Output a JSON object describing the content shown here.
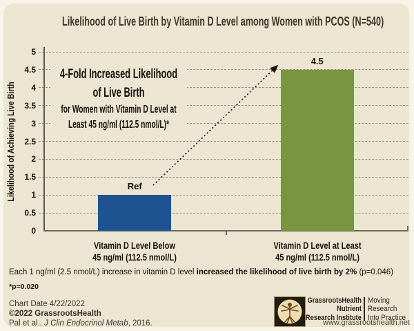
{
  "chart_data": {
    "type": "bar",
    "title": "Likelihood of Live Birth by Vitamin D Level among Women with PCOS (N=540)",
    "ylabel": "Likelihood of Achieving Live Birth",
    "xlabel": "",
    "ylim": [
      0,
      5
    ],
    "ytick_step": 0.5,
    "grid": true,
    "categories": [
      [
        "Vitamin D Level Below",
        "45 ng/ml (112.5 nmol/L)"
      ],
      [
        "Vitamin D Level at Least",
        "45 ng/ml (112.5 nmol/L)"
      ]
    ],
    "values": [
      1,
      4.5
    ],
    "bar_value_labels": [
      "Ref",
      "4.5"
    ],
    "bar_colors": [
      "#1f5291",
      "#7a953f"
    ],
    "annotation": {
      "lines_large": [
        "4-Fold Increased Likelihood",
        "of Live Birth"
      ],
      "lines_small": [
        "for Women with Vitamin D Level at",
        "Least 45 ng/ml (112.5 nmol/L)*"
      ]
    }
  },
  "footnote": {
    "prefix": "Each 1 ng/ml (2.5 nmol/L) increase in vitamin D level ",
    "bold": "increased the likelihood of live birth by 2%",
    "suffix": " (p=0.046)",
    "pvalue": "*p=0.020"
  },
  "credits": {
    "chart_date": "Chart Date 4/22/2022",
    "copyright": "©2022 GrassrootsHealth",
    "citation_prefix": "Pal et al., ",
    "citation_journal": "J Clin Endocrinol Metab",
    "citation_suffix": ", 2016."
  },
  "logo": {
    "org_lines": [
      "GrassrootsHealth",
      "Nutrient",
      "Research Institute"
    ],
    "tagline_lines": [
      "Moving",
      "Research",
      "Into Practice"
    ],
    "url": "www.grassrootshealth.net"
  },
  "colors": {
    "panel_bg": "#ece5d1",
    "outer_bg": "#f7f4e7",
    "title_text": "#3e3827",
    "bar_blue": "#1f5291",
    "bar_green": "#7a953f",
    "gridline": "#968f7e",
    "axis_line": "#6f6a5c"
  }
}
